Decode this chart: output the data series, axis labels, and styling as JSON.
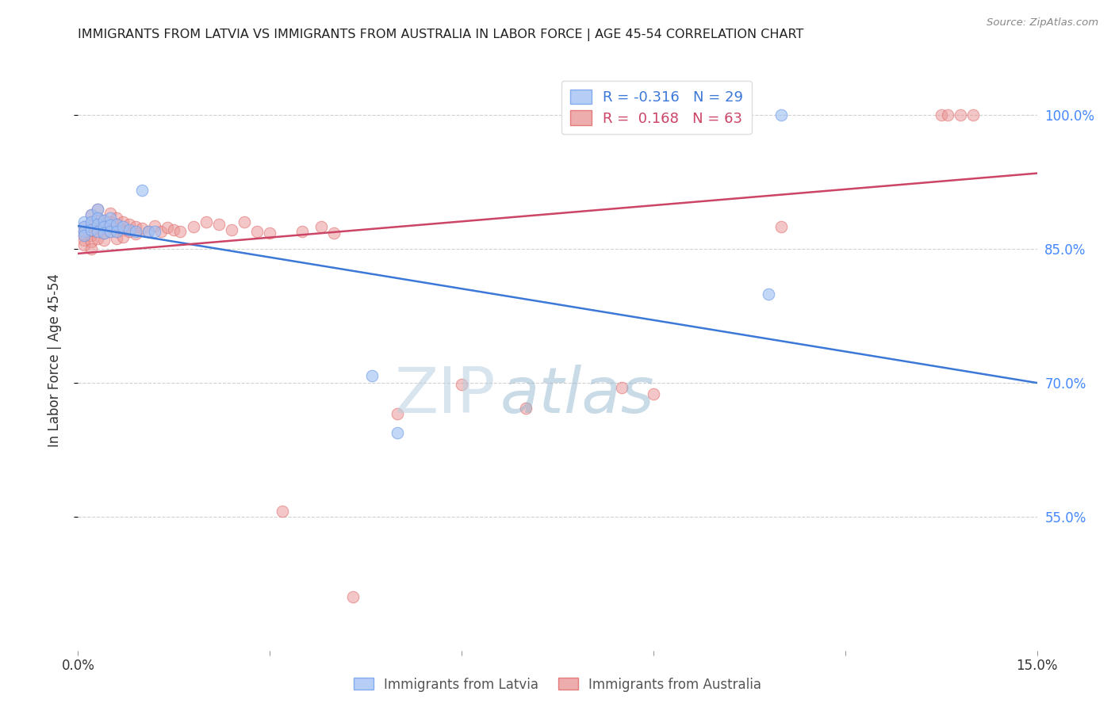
{
  "title": "IMMIGRANTS FROM LATVIA VS IMMIGRANTS FROM AUSTRALIA IN LABOR FORCE | AGE 45-54 CORRELATION CHART",
  "source": "Source: ZipAtlas.com",
  "ylabel": "In Labor Force | Age 45-54",
  "xlim": [
    0.0,
    0.15
  ],
  "ylim": [
    0.4,
    1.05
  ],
  "ytick_values": [
    0.55,
    0.7,
    0.85,
    1.0
  ],
  "ytick_labels": [
    "55.0%",
    "70.0%",
    "85.0%",
    "100.0%"
  ],
  "blue_fill": "#a4c2f4",
  "blue_edge": "#6d9eeb",
  "pink_fill": "#ea9999",
  "pink_edge": "#e06666",
  "blue_line_color": "#3c78d8",
  "pink_line_color": "#cc4466",
  "legend_blue_r": "-0.316",
  "legend_blue_n": "29",
  "legend_pink_r": "0.168",
  "legend_pink_n": "63",
  "legend_label_blue": "Immigrants from Latvia",
  "legend_label_pink": "Immigrants from Australia",
  "background_color": "#ffffff",
  "watermark": "ZIPatlas",
  "watermark_zip_color": "#c5d8e8",
  "watermark_atlas_color": "#a0b8cc",
  "blue_x": [
    0.001,
    0.001,
    0.001,
    0.001,
    0.002,
    0.002,
    0.002,
    0.003,
    0.003,
    0.003,
    0.003,
    0.004,
    0.004,
    0.004,
    0.005,
    0.005,
    0.005,
    0.006,
    0.006,
    0.007,
    0.008,
    0.009,
    0.01,
    0.011,
    0.012,
    0.046,
    0.05,
    0.108,
    0.11
  ],
  "blue_y": [
    0.88,
    0.875,
    0.87,
    0.865,
    0.888,
    0.88,
    0.872,
    0.895,
    0.885,
    0.878,
    0.87,
    0.882,
    0.875,
    0.868,
    0.885,
    0.877,
    0.87,
    0.878,
    0.87,
    0.875,
    0.872,
    0.87,
    0.916,
    0.87,
    0.87,
    0.708,
    0.644,
    0.8,
    1.0
  ],
  "pink_x": [
    0.001,
    0.001,
    0.001,
    0.001,
    0.001,
    0.002,
    0.002,
    0.002,
    0.002,
    0.002,
    0.002,
    0.003,
    0.003,
    0.003,
    0.003,
    0.003,
    0.004,
    0.004,
    0.004,
    0.004,
    0.005,
    0.005,
    0.005,
    0.006,
    0.006,
    0.006,
    0.006,
    0.007,
    0.007,
    0.007,
    0.008,
    0.008,
    0.009,
    0.009,
    0.01,
    0.011,
    0.012,
    0.013,
    0.014,
    0.015,
    0.016,
    0.018,
    0.02,
    0.022,
    0.024,
    0.026,
    0.028,
    0.03,
    0.032,
    0.035,
    0.038,
    0.04,
    0.043,
    0.05,
    0.06,
    0.07,
    0.085,
    0.09,
    0.11,
    0.135,
    0.136,
    0.138,
    0.14
  ],
  "pink_y": [
    0.875,
    0.87,
    0.865,
    0.86,
    0.855,
    0.888,
    0.88,
    0.872,
    0.865,
    0.858,
    0.85,
    0.895,
    0.885,
    0.878,
    0.87,
    0.862,
    0.882,
    0.875,
    0.868,
    0.86,
    0.89,
    0.88,
    0.87,
    0.885,
    0.878,
    0.87,
    0.862,
    0.88,
    0.872,
    0.864,
    0.878,
    0.87,
    0.875,
    0.867,
    0.873,
    0.87,
    0.876,
    0.87,
    0.874,
    0.872,
    0.87,
    0.875,
    0.88,
    0.878,
    0.872,
    0.88,
    0.87,
    0.868,
    0.556,
    0.87,
    0.875,
    0.868,
    0.46,
    0.665,
    0.698,
    0.672,
    0.695,
    0.688,
    0.875,
    1.0,
    1.0,
    1.0,
    1.0
  ]
}
